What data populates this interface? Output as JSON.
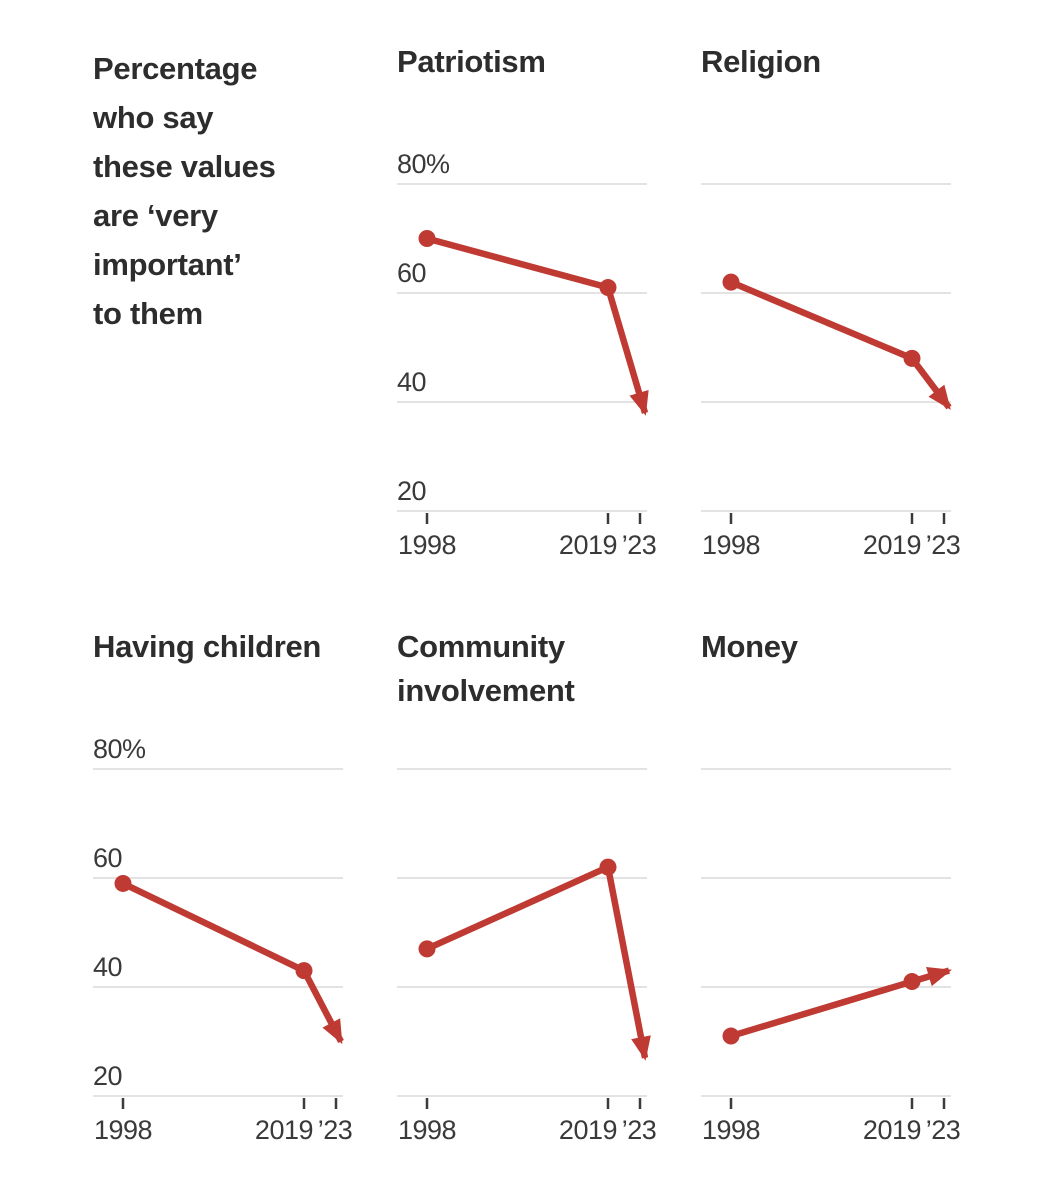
{
  "intro": {
    "text": "Percentage\nwho say\nthese values\nare ‘very\nimportant’\nto them"
  },
  "axis": {
    "x_tick_labels": [
      "1998",
      "2019",
      "’23"
    ],
    "y_tick_labels": [
      "80%",
      "60",
      "40",
      "20"
    ],
    "y_gridlines": [
      80,
      60,
      40,
      20
    ]
  },
  "colors": {
    "accent_red": "#bf3a33",
    "gridline": "#e3e3e3",
    "tick": "#3b3b3b",
    "axis_text": "#3a3a3a",
    "title_text": "#2d2d2d"
  },
  "chart_data": [
    {
      "type": "line",
      "title": "Patriotism",
      "x": [
        "1998",
        "2019",
        "2023"
      ],
      "values": [
        70,
        61,
        38
      ],
      "ylim": [
        20,
        80
      ],
      "grid": true,
      "show_y_labels": true,
      "end_arrow": true,
      "legend_position": "none"
    },
    {
      "type": "line",
      "title": "Religion",
      "x": [
        "1998",
        "2019",
        "2023"
      ],
      "values": [
        62,
        48,
        39
      ],
      "ylim": [
        20,
        80
      ],
      "grid": true,
      "show_y_labels": false,
      "end_arrow": true,
      "legend_position": "none"
    },
    {
      "type": "line",
      "title": "Having children",
      "x": [
        "1998",
        "2019",
        "2023"
      ],
      "values": [
        59,
        43,
        30
      ],
      "ylim": [
        20,
        80
      ],
      "grid": true,
      "show_y_labels": true,
      "end_arrow": true,
      "legend_position": "none"
    },
    {
      "type": "line",
      "title": "Community involvement",
      "x": [
        "1998",
        "2019",
        "2023"
      ],
      "values": [
        47,
        62,
        27
      ],
      "ylim": [
        20,
        80
      ],
      "grid": true,
      "show_y_labels": false,
      "end_arrow": true,
      "legend_position": "none"
    },
    {
      "type": "line",
      "title": "Money",
      "x": [
        "1998",
        "2019",
        "2023"
      ],
      "values": [
        31,
        41,
        43
      ],
      "ylim": [
        20,
        80
      ],
      "grid": true,
      "show_y_labels": false,
      "end_arrow": true,
      "legend_position": "none"
    }
  ]
}
